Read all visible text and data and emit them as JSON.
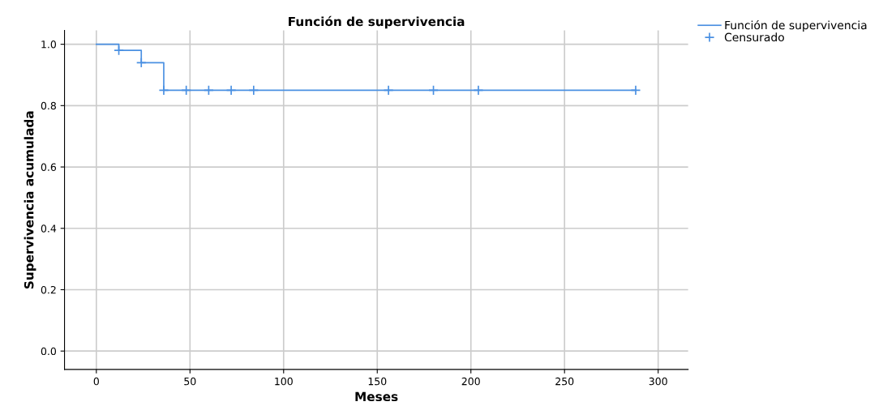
{
  "chart_data": {
    "type": "step",
    "title": "Función de supervivencia",
    "xlabel": "Meses",
    "ylabel": "Supervivencia acumulada",
    "series": [
      {
        "name": "Función de supervivencia",
        "color": "#4a90e2",
        "x": [
          0,
          12,
          24,
          36,
          288
        ],
        "values": [
          1.0,
          0.98,
          0.94,
          0.85,
          0.85
        ],
        "marker": "none"
      },
      {
        "name": "Censurado",
        "type": "scatter",
        "color": "#4a90e2",
        "x": [
          12,
          24,
          36,
          48,
          60,
          72,
          84,
          156,
          180,
          204,
          288
        ],
        "values": [
          0.98,
          0.94,
          0.85,
          0.85,
          0.85,
          0.85,
          0.85,
          0.85,
          0.85,
          0.85,
          0.85
        ],
        "marker": "cross"
      }
    ],
    "xlim": [
      -17,
      316
    ],
    "xticks": [
      0,
      50,
      100,
      150,
      200,
      250,
      300
    ],
    "ylim": [
      -0.06,
      1.045
    ],
    "yticks": [
      {
        "value": 0,
        "label": "0.0"
      },
      {
        "value": 0.2,
        "label": "0.2"
      },
      {
        "value": 0.4,
        "label": "0.4"
      },
      {
        "value": 0.6,
        "label": "0.6"
      },
      {
        "value": 0.8,
        "label": "0.8"
      },
      {
        "value": 1,
        "label": "1.0"
      }
    ],
    "grid": true,
    "legend": "top right"
  }
}
